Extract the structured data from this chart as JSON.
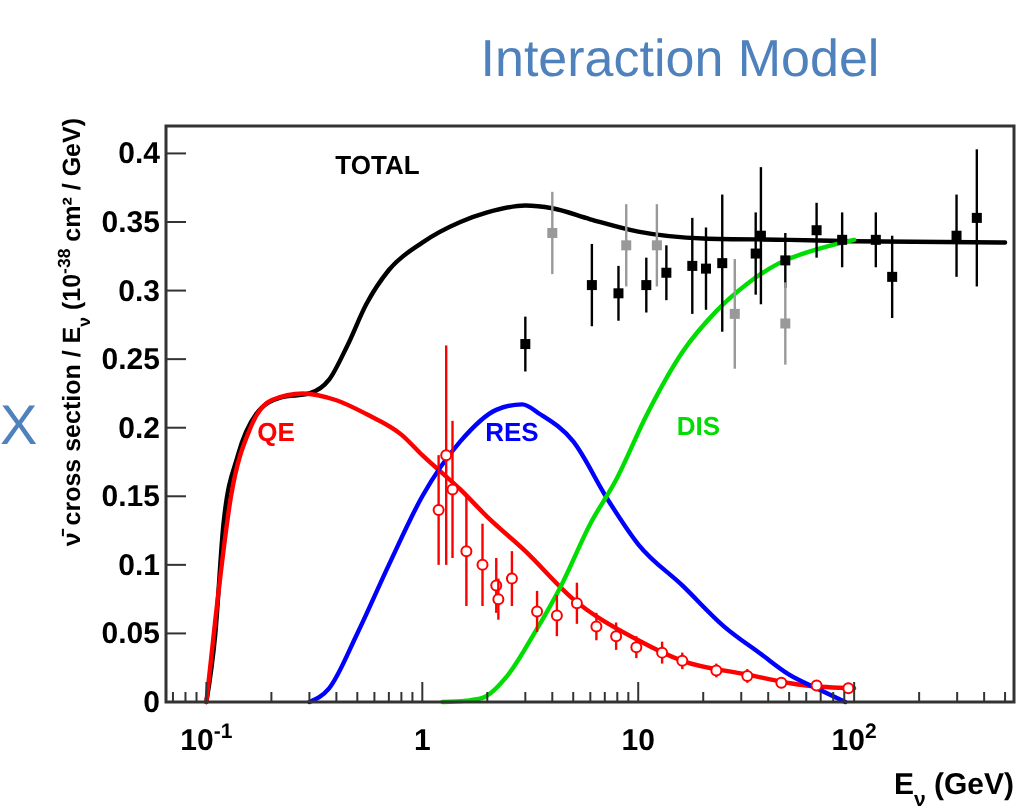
{
  "chart_data": {
    "type": "line",
    "title": "Interaction Model",
    "xlabel": "E$_{ν}$ (GeV)",
    "ylabel": "ν̄ cross section / E$_{ν}$ (10$^{-38}$ cm² / GeV)",
    "annotations": [
      "X"
    ],
    "log": "x",
    "xlim": [
      0.065,
      550
    ],
    "ylim": [
      0,
      0.42
    ],
    "xticks": [
      {
        "value": 0.1,
        "label": "10$^{-1}$"
      },
      1,
      10,
      {
        "value": 100,
        "label": "10$^{2}$"
      }
    ],
    "yticks": [
      0,
      0.05,
      0.1,
      0.15,
      0.2,
      0.25,
      0.3,
      0.35,
      0.4
    ],
    "grid": false,
    "legend": false,
    "marker": "none",
    "line_style": "solid",
    "series": [
      {
        "name": "TOTAL",
        "color": "#000000",
        "x": [
          0.1,
          0.11,
          0.12,
          0.14,
          0.17,
          0.22,
          0.3,
          0.37,
          0.45,
          0.55,
          0.7,
          1,
          1.5,
          2,
          3,
          4,
          6,
          10,
          20,
          50,
          100,
          500
        ],
        "values": [
          0,
          0.05,
          0.13,
          0.18,
          0.21,
          0.222,
          0.225,
          0.235,
          0.26,
          0.29,
          0.315,
          0.335,
          0.35,
          0.357,
          0.362,
          0.36,
          0.352,
          0.343,
          0.338,
          0.337,
          0.336,
          0.335
        ]
      },
      {
        "name": "QE",
        "color": "#ff0000",
        "x": [
          0.1,
          0.11,
          0.13,
          0.16,
          0.2,
          0.28,
          0.4,
          0.55,
          0.8,
          1,
          1.5,
          2,
          3,
          5,
          10,
          16,
          32,
          60,
          100
        ],
        "values": [
          0,
          0.06,
          0.15,
          0.2,
          0.22,
          0.225,
          0.22,
          0.21,
          0.195,
          0.18,
          0.155,
          0.135,
          0.11,
          0.075,
          0.045,
          0.03,
          0.02,
          0.012,
          0.01
        ]
      },
      {
        "name": "RES",
        "color": "#0000ff",
        "x": [
          0.3,
          0.37,
          0.5,
          0.7,
          1,
          1.5,
          2.2,
          2.9,
          3.5,
          5,
          7.2,
          10,
          16,
          25,
          37,
          50,
          67,
          91
        ],
        "values": [
          0,
          0.01,
          0.05,
          0.1,
          0.15,
          0.19,
          0.213,
          0.217,
          0.21,
          0.19,
          0.148,
          0.115,
          0.085,
          0.055,
          0.035,
          0.02,
          0.01,
          0
        ]
      },
      {
        "name": "DIS",
        "color": "#00dd00",
        "x": [
          1.24,
          1.6,
          1.9,
          2.5,
          3.3,
          4.4,
          6,
          7.9,
          11,
          16,
          23,
          32,
          45,
          67,
          100
        ],
        "values": [
          0,
          0.001,
          0.003,
          0.02,
          0.05,
          0.085,
          0.13,
          0.162,
          0.21,
          0.255,
          0.285,
          0.305,
          0.32,
          0.33,
          0.337
        ]
      },
      {
        "type": "scatter",
        "marker": "square",
        "color": "#000000",
        "x": [
          3,
          6.1,
          8.1,
          10.9,
          13.5,
          17.8,
          20.6,
          24.5,
          35,
          48,
          37,
          67,
          88,
          126,
          150,
          298,
          370
        ],
        "values": [
          0.261,
          0.304,
          0.298,
          0.304,
          0.313,
          0.318,
          0.316,
          0.32,
          0.327,
          0.322,
          0.34,
          0.344,
          0.337,
          0.337,
          0.31,
          0.34,
          0.353
        ],
        "errors": [
          0.02,
          0.03,
          0.02,
          0.02,
          0.02,
          0.035,
          0.03,
          0.05,
          0.03,
          0.02,
          0.05,
          0.02,
          0.02,
          0.02,
          0.03,
          0.03,
          0.05
        ]
      },
      {
        "type": "scatter",
        "marker": "square",
        "color": "#999999",
        "x": [
          4,
          8.8,
          12.2,
          28,
          48
        ],
        "values": [
          0.342,
          0.333,
          0.333,
          0.283,
          0.276
        ],
        "errors": [
          0.03,
          0.03,
          0.03,
          0.04,
          0.03
        ]
      },
      {
        "type": "scatter",
        "marker": "circle",
        "color": "#ff0000",
        "x": [
          1.19,
          1.29,
          1.38,
          1.6,
          1.9,
          2.2,
          2.25,
          2.6,
          3.4,
          4.2,
          5.2,
          6.4,
          7.9,
          9.8,
          12.9,
          16,
          23,
          32,
          46,
          67,
          94
        ],
        "values": [
          0.14,
          0.18,
          0.155,
          0.11,
          0.1,
          0.085,
          0.075,
          0.09,
          0.066,
          0.063,
          0.072,
          0.055,
          0.048,
          0.04,
          0.036,
          0.03,
          0.023,
          0.019,
          0.014,
          0.012,
          0.01
        ],
        "errors": [
          0.04,
          0.08,
          0.05,
          0.04,
          0.03,
          0.02,
          0.015,
          0.02,
          0.015,
          0.015,
          0.015,
          0.01,
          0.01,
          0.008,
          0.008,
          0.006,
          0.005,
          0.005,
          0.004,
          0.004,
          0.004
        ]
      }
    ]
  }
}
